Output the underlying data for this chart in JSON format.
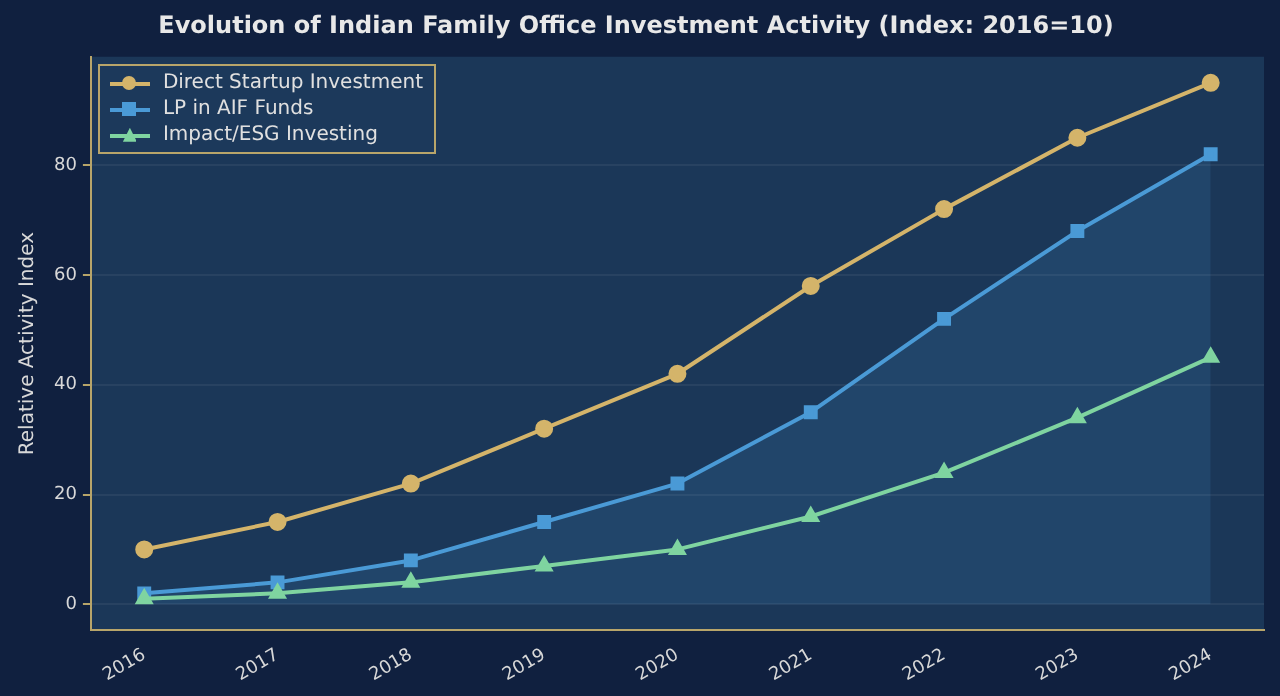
{
  "chart_data": {
    "type": "line",
    "title": "Evolution of Indian Family Office Investment Activity (Index: 2016=10)",
    "ylabel": "Relative Activity Index",
    "x": [
      2016,
      2017,
      2018,
      2019,
      2020,
      2021,
      2022,
      2023,
      2024
    ],
    "xlim": [
      2015.6,
      2024.4
    ],
    "xticks": [
      2016,
      2017,
      2018,
      2019,
      2020,
      2021,
      2022,
      2023,
      2024
    ],
    "ylim": [
      -4.75,
      99.75
    ],
    "yticks": [
      0,
      20,
      40,
      60,
      80
    ],
    "series": [
      {
        "name": "Direct Startup Investment",
        "color": "#d4b46a",
        "marker": "circle",
        "values": [
          10,
          15,
          22,
          32,
          42,
          58,
          72,
          85,
          95
        ]
      },
      {
        "name": "LP in AIF Funds",
        "color": "#4a9ad6",
        "marker": "square",
        "type": "area",
        "values": [
          2,
          4,
          8,
          15,
          22,
          35,
          52,
          68,
          82
        ]
      },
      {
        "name": "Impact/ESG Investing",
        "color": "#7fd4a0",
        "marker": "triangle",
        "values": [
          1,
          2,
          4,
          7,
          10,
          16,
          24,
          34,
          45
        ]
      }
    ],
    "grid": "y",
    "legend": "top left",
    "line_style": "solid"
  }
}
